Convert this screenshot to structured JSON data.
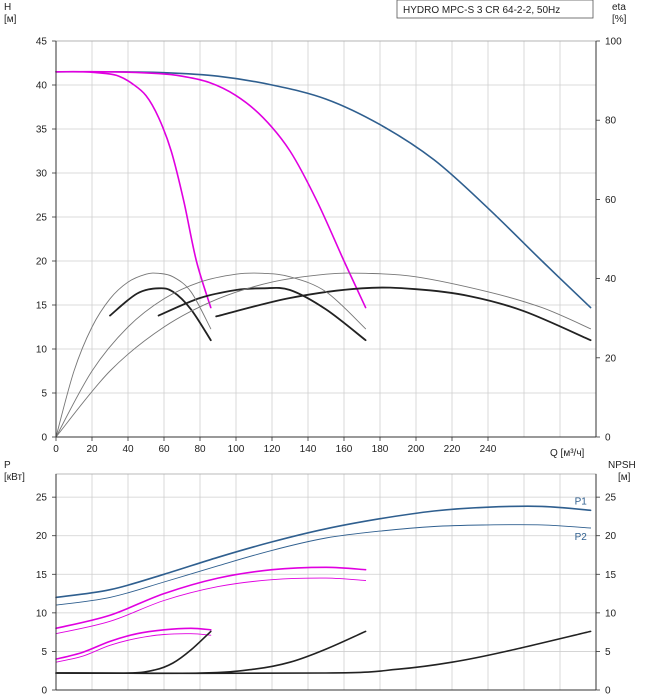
{
  "chart_data": [
    {
      "type": "line",
      "title": "HYDRO MPC-S 3 CR 64-2-2, 50Hz",
      "ylabel_left": "H",
      "ylabel_left_unit": "[м]",
      "ylabel_right": "eta",
      "ylabel_right_unit": "[%]",
      "xlabel": "Q [м³/ч]",
      "xlim": [
        0,
        300
      ],
      "ylim_left": [
        0,
        45
      ],
      "ylim_right": [
        0,
        100
      ],
      "x_ticks": [
        "0",
        "20",
        "40",
        "60",
        "80",
        "100",
        "120",
        "140",
        "160",
        "180",
        "200",
        "220",
        "240"
      ],
      "y_ticks_left": [
        "0",
        "5",
        "10",
        "15",
        "20",
        "25",
        "30",
        "35",
        "40",
        "45"
      ],
      "y_ticks_right": [
        "0",
        "20",
        "40",
        "60",
        "80",
        "100"
      ],
      "grid": true,
      "series": [
        {
          "axis": "left",
          "color": "#2f5f8f",
          "width": 1.6,
          "x": [
            0,
            30,
            60,
            90,
            120,
            150,
            180,
            210,
            240,
            270,
            297
          ],
          "y": [
            41.5,
            41.5,
            41.4,
            41.0,
            40.0,
            38.4,
            35.5,
            31.5,
            26.0,
            20.0,
            14.7
          ]
        },
        {
          "axis": "left",
          "color": "#e000e0",
          "width": 1.6,
          "x": [
            0,
            30,
            57,
            70,
            85,
            100,
            115,
            130,
            145,
            160,
            172
          ],
          "y": [
            41.5,
            41.5,
            41.3,
            41.0,
            40.3,
            38.8,
            36.3,
            32.5,
            26.8,
            20.0,
            14.7
          ]
        },
        {
          "axis": "left",
          "color": "#e000e0",
          "width": 1.6,
          "x": [
            0,
            15,
            28,
            35,
            42,
            50,
            57,
            64,
            71,
            78,
            86
          ],
          "y": [
            41.5,
            41.5,
            41.3,
            41.0,
            40.2,
            38.8,
            36.3,
            32.5,
            26.8,
            20.0,
            14.7
          ]
        },
        {
          "axis": "left",
          "color": "#222222",
          "width": 1.8,
          "x": [
            30,
            45,
            57,
            65,
            75,
            86
          ],
          "y": [
            13.8,
            16.3,
            16.9,
            16.5,
            14.5,
            11.0
          ]
        },
        {
          "axis": "left",
          "color": "#222222",
          "width": 1.8,
          "x": [
            57,
            80,
            100,
            115,
            130,
            150,
            172
          ],
          "y": [
            13.8,
            15.8,
            16.7,
            16.9,
            16.7,
            14.5,
            11.0
          ]
        },
        {
          "axis": "left",
          "color": "#222222",
          "width": 1.8,
          "x": [
            89,
            130,
            170,
            200,
            230,
            260,
            297
          ],
          "y": [
            13.7,
            15.8,
            16.9,
            16.8,
            16.0,
            14.3,
            11.0
          ]
        },
        {
          "axis": "left",
          "color": "#777777",
          "width": 0.9,
          "x": [
            0,
            10,
            20,
            30,
            40,
            50,
            57,
            65,
            75,
            86
          ],
          "y": [
            0,
            7.5,
            12.5,
            15.7,
            17.6,
            18.5,
            18.6,
            18.2,
            16.5,
            12.3
          ]
        },
        {
          "axis": "left",
          "color": "#777777",
          "width": 0.9,
          "x": [
            0,
            20,
            40,
            60,
            80,
            100,
            115,
            130,
            150,
            172
          ],
          "y": [
            0,
            7.5,
            12.5,
            15.7,
            17.6,
            18.5,
            18.6,
            18.2,
            16.5,
            12.3
          ]
        },
        {
          "axis": "left",
          "color": "#777777",
          "width": 0.9,
          "x": [
            0,
            30,
            60,
            90,
            120,
            150,
            172,
            200,
            240,
            270,
            297
          ],
          "y": [
            0,
            7.5,
            12.5,
            15.7,
            17.6,
            18.5,
            18.6,
            18.2,
            16.5,
            14.7,
            12.3
          ]
        }
      ]
    },
    {
      "type": "line",
      "ylabel_left": "P",
      "ylabel_left_unit": "[кВт]",
      "ylabel_right": "NPSH",
      "ylabel_right_unit": "[м]",
      "xlim": [
        0,
        300
      ],
      "ylim_left": [
        0,
        28
      ],
      "ylim_right": [
        0,
        28
      ],
      "y_ticks_left": [
        "0",
        "5",
        "10",
        "15",
        "20",
        "25"
      ],
      "y_ticks_right": [
        "0",
        "5",
        "10",
        "15",
        "20",
        "25"
      ],
      "grid": true,
      "series": [
        {
          "name": "P1",
          "axis": "left",
          "color": "#2f5f8f",
          "width": 1.6,
          "x": [
            0,
            30,
            60,
            90,
            120,
            150,
            180,
            210,
            240,
            270,
            297
          ],
          "y": [
            12.0,
            13.0,
            15.0,
            17.2,
            19.2,
            20.9,
            22.2,
            23.2,
            23.7,
            23.8,
            23.3
          ]
        },
        {
          "name": "P2",
          "axis": "left",
          "color": "#2f5f8f",
          "width": 0.9,
          "x": [
            0,
            30,
            60,
            90,
            120,
            150,
            180,
            210,
            240,
            270,
            297
          ],
          "y": [
            11.0,
            12.0,
            14.0,
            16.1,
            18.1,
            19.7,
            20.6,
            21.2,
            21.4,
            21.4,
            21.0
          ]
        },
        {
          "axis": "left",
          "color": "#e000e0",
          "width": 1.6,
          "x": [
            0,
            30,
            60,
            90,
            120,
            150,
            172
          ],
          "y": [
            8.0,
            9.7,
            12.5,
            14.5,
            15.6,
            15.9,
            15.6
          ]
        },
        {
          "axis": "left",
          "color": "#e000e0",
          "width": 0.9,
          "x": [
            0,
            30,
            60,
            90,
            120,
            150,
            172
          ],
          "y": [
            7.3,
            8.9,
            11.6,
            13.4,
            14.3,
            14.5,
            14.2
          ]
        },
        {
          "axis": "left",
          "color": "#e000e0",
          "width": 1.6,
          "x": [
            0,
            15,
            30,
            45,
            60,
            75,
            86
          ],
          "y": [
            4.0,
            4.9,
            6.3,
            7.3,
            7.8,
            8.0,
            7.8
          ]
        },
        {
          "axis": "left",
          "color": "#e000e0",
          "width": 0.9,
          "x": [
            0,
            15,
            30,
            45,
            60,
            75,
            86
          ],
          "y": [
            3.6,
            4.4,
            5.8,
            6.7,
            7.2,
            7.3,
            7.1
          ]
        },
        {
          "axis": "right",
          "color": "#222222",
          "width": 1.6,
          "x": [
            0,
            40,
            55,
            65,
            75,
            86
          ],
          "y": [
            2.2,
            2.2,
            2.6,
            3.5,
            5.2,
            7.6
          ]
        },
        {
          "axis": "right",
          "color": "#222222",
          "width": 1.6,
          "x": [
            0,
            80,
            110,
            130,
            150,
            172
          ],
          "y": [
            2.2,
            2.2,
            2.7,
            3.6,
            5.3,
            7.6
          ]
        },
        {
          "axis": "right",
          "color": "#222222",
          "width": 1.6,
          "x": [
            0,
            150,
            190,
            220,
            250,
            297
          ],
          "y": [
            2.2,
            2.2,
            2.7,
            3.6,
            5.0,
            7.6
          ]
        }
      ]
    }
  ]
}
